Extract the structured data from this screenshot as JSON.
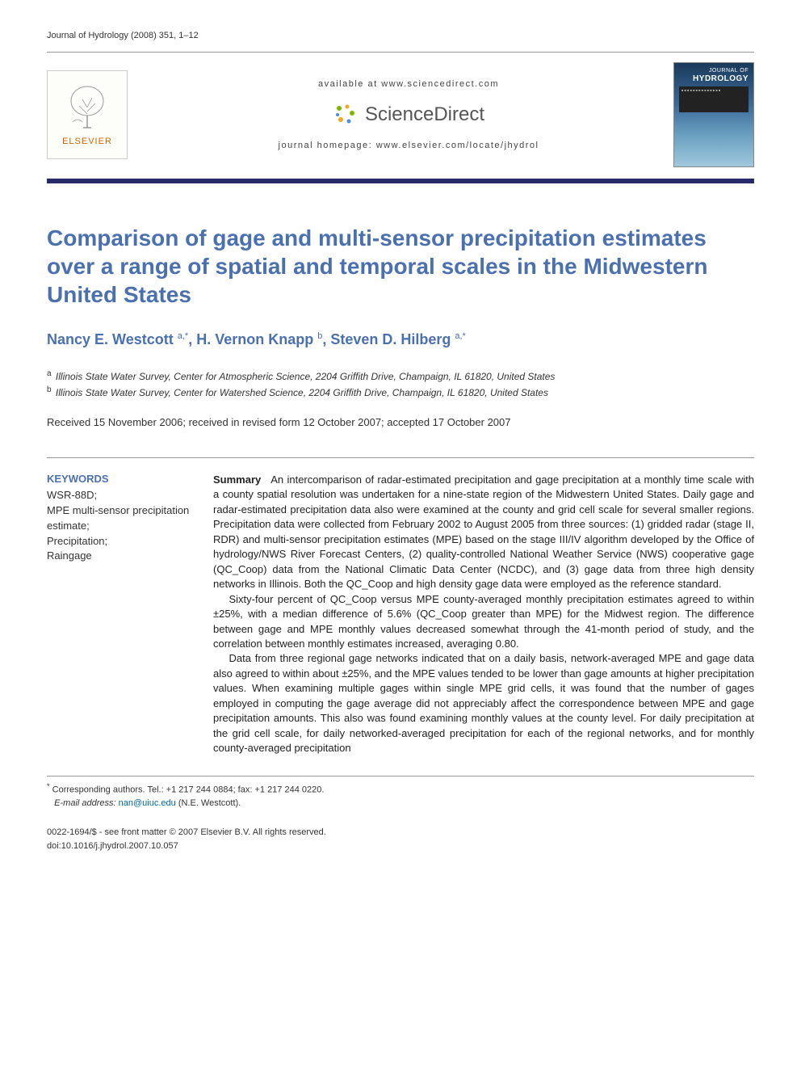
{
  "running_head": "Journal of Hydrology (2008) 351, 1–12",
  "banner": {
    "available_at": "available at www.sciencedirect.com",
    "sd_brand": "ScienceDirect",
    "homepage": "journal homepage: www.elsevier.com/locate/jhydrol",
    "elsevier_name": "ELSEVIER",
    "cover_small": "JOURNAL OF",
    "cover_big": "HYDROLOGY"
  },
  "title": "Comparison of gage and multi-sensor precipitation estimates over a range of spatial and temporal scales in the Midwestern United States",
  "authors_html": "Nancy E. Westcott <sup>a,*</sup>, H. Vernon Knapp <sup>b</sup>, Steven D. Hilberg <sup>a,*</sup>",
  "affiliations": [
    {
      "sup": "a",
      "text": "Illinois State Water Survey, Center for Atmospheric Science, 2204 Griffith Drive, Champaign, IL 61820, United States"
    },
    {
      "sup": "b",
      "text": "Illinois State Water Survey, Center for Watershed Science, 2204 Griffith Drive, Champaign, IL 61820, United States"
    }
  ],
  "history": "Received 15 November 2006; received in revised form 12 October 2007; accepted 17 October 2007",
  "keywords_heading": "KEYWORDS",
  "keywords": "WSR-88D;\nMPE multi-sensor precipitation estimate;\nPrecipitation;\nRaingage",
  "summary_label": "Summary",
  "summary_paragraphs": [
    "An intercomparison of radar-estimated precipitation and gage precipitation at a monthly time scale with a county spatial resolution was undertaken for a nine-state region of the Midwestern United States. Daily gage and radar-estimated precipitation data also were examined at the county and grid cell scale for several smaller regions. Precipitation data were collected from February 2002 to August 2005 from three sources: (1) gridded radar (stage II, RDR) and multi-sensor precipitation estimates (MPE) based on the stage III/IV algorithm developed by the Office of hydrology/NWS River Forecast Centers, (2) quality-controlled National Weather Service (NWS) cooperative gage (QC_Coop) data from the National Climatic Data Center (NCDC), and (3) gage data from three high density networks in Illinois. Both the QC_Coop and high density gage data were employed as the reference standard.",
    "Sixty-four percent of QC_Coop versus MPE county-averaged monthly precipitation estimates agreed to within ±25%, with a median difference of 5.6% (QC_Coop greater than MPE) for the Midwest region. The difference between gage and MPE monthly values decreased somewhat through the 41-month period of study, and the correlation between monthly estimates increased, averaging 0.80.",
    "Data from three regional gage networks indicated that on a daily basis, network-averaged MPE and gage data also agreed to within about ±25%, and the MPE values tended to be lower than gage amounts at higher precipitation values. When examining multiple gages within single MPE grid cells, it was found that the number of gages employed in computing the gage average did not appreciably affect the correspondence between MPE and gage precipitation amounts. This also was found examining monthly values at the county level. For daily precipitation at the grid cell scale, for daily networked-averaged precipitation for each of the regional networks, and for monthly county-averaged precipitation"
  ],
  "footnote_corr": "Corresponding authors. Tel.: +1 217 244 0884; fax: +1 217 244 0220.",
  "footnote_email_label": "E-mail address:",
  "footnote_email": "nan@uiuc.edu",
  "footnote_email_tail": " (N.E. Westcott).",
  "copyright_line1": "0022-1694/$ - see front matter © 2007 Elsevier B.V. All rights reserved.",
  "copyright_line2": "doi:10.1016/j.jhydrol.2007.10.057",
  "colors": {
    "title": "#4a70b0",
    "rule": "#2a2a6a",
    "elsevier": "#cc6600"
  }
}
